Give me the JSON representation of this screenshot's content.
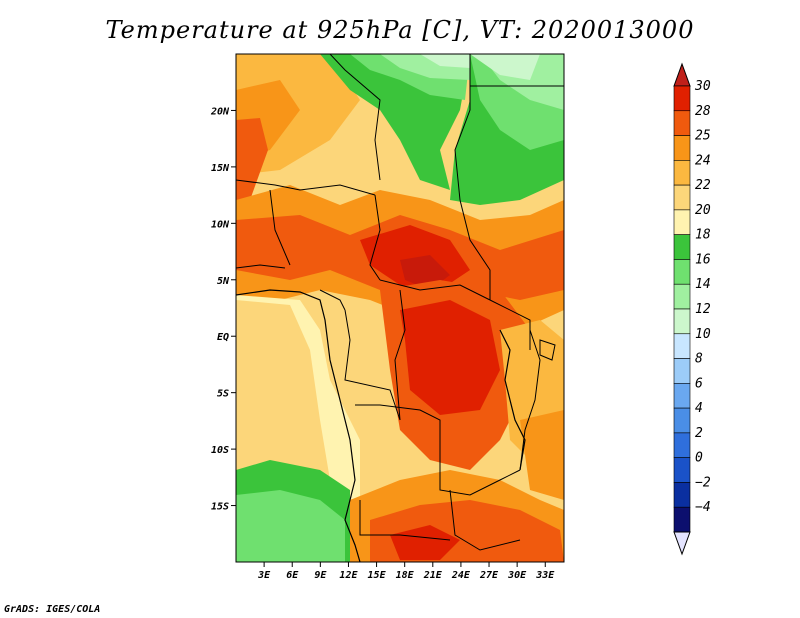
{
  "title": "Temperature at 925hPa [C], VT: 2020013000",
  "credit": "GrADS: IGES/COLA",
  "map": {
    "lon_range": [
      0,
      35
    ],
    "lat_range": [
      -20,
      25
    ],
    "lat_ticks": [
      {
        "value": 20,
        "label": "20N"
      },
      {
        "value": 15,
        "label": "15N"
      },
      {
        "value": 10,
        "label": "10N"
      },
      {
        "value": 5,
        "label": "5N"
      },
      {
        "value": 0,
        "label": "EQ"
      },
      {
        "value": -5,
        "label": "5S"
      },
      {
        "value": -10,
        "label": "10S"
      },
      {
        "value": -15,
        "label": "15S"
      }
    ],
    "lon_ticks": [
      {
        "value": 3,
        "label": "3E"
      },
      {
        "value": 6,
        "label": "6E"
      },
      {
        "value": 9,
        "label": "9E"
      },
      {
        "value": 12,
        "label": "12E"
      },
      {
        "value": 15,
        "label": "15E"
      },
      {
        "value": 18,
        "label": "18E"
      },
      {
        "value": 21,
        "label": "21E"
      },
      {
        "value": 24,
        "label": "24E"
      },
      {
        "value": 27,
        "label": "27E"
      },
      {
        "value": 30,
        "label": "30E"
      },
      {
        "value": 33,
        "label": "33E"
      }
    ]
  },
  "colorbar": {
    "labels": [
      "30",
      "28",
      "25",
      "24",
      "22",
      "20",
      "18",
      "16",
      "14",
      "12",
      "10",
      "8",
      "6",
      "4",
      "2",
      "0",
      "−2",
      "−4"
    ],
    "colors": [
      "#e02000",
      "#f05a0e",
      "#f89518",
      "#fbb840",
      "#fcd67a",
      "#fff3b0",
      "#3bc43b",
      "#6fe06f",
      "#a0f0a0",
      "#ccf7cc",
      "#c8e6ff",
      "#9cccf8",
      "#6aa8f0",
      "#4a8ee6",
      "#2f6fdc",
      "#1a52c8",
      "#0a2fa0",
      "#0c0f6e"
    ],
    "top_arrow_color": "#c0201a",
    "bottom_arrow_color": "#e4e4ff"
  }
}
